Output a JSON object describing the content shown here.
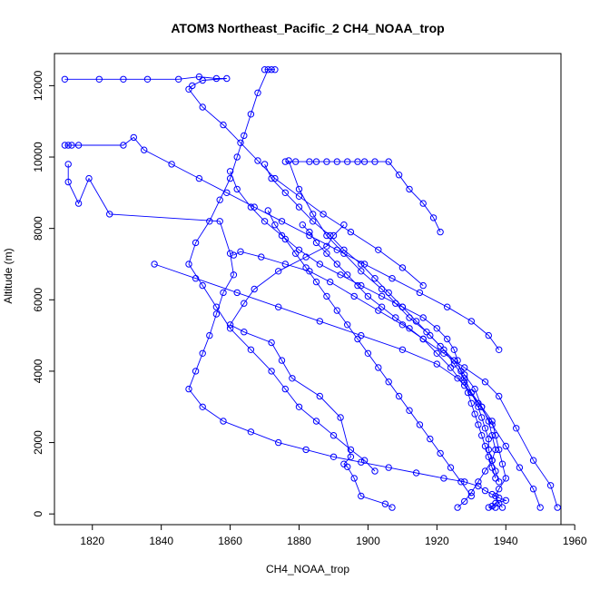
{
  "chart_data": {
    "type": "line",
    "title": "ATOM3 Northeast_Pacific_2 CH4_NOAA_trop",
    "xlabel": "CH4_NOAA_trop",
    "ylabel": "Altitude (m)",
    "xlim": [
      1809,
      1956
    ],
    "ylim": [
      -300,
      12900
    ],
    "xticks": [
      1820,
      1840,
      1860,
      1880,
      1900,
      1920,
      1940,
      1960
    ],
    "yticks": [
      0,
      2000,
      4000,
      6000,
      8000,
      10000,
      12000
    ],
    "grid": false,
    "legend": "none",
    "color": "#0000ff",
    "marker": "open-circle",
    "profiles": [
      {
        "x": [
          1907,
          1905,
          1898,
          1896,
          1894,
          1893,
          1895,
          1892,
          1886,
          1878,
          1875,
          1872,
          1864,
          1860,
          1864,
          1867,
          1874,
          1882,
          1888,
          1890,
          1893
        ],
        "y": [
          180,
          280,
          500,
          1000,
          1320,
          1400,
          1600,
          2700,
          3300,
          3800,
          4300,
          4800,
          5100,
          5300,
          5900,
          6300,
          6800,
          7200,
          7500,
          7800,
          8100
        ]
      },
      {
        "x": [
          1926,
          1928,
          1930,
          1932,
          1934,
          1936,
          1937,
          1936,
          1935,
          1933,
          1931,
          1928,
          1925,
          1921,
          1917,
          1912,
          1908,
          1904,
          1898,
          1893,
          1888,
          1884,
          1880,
          1877
        ],
        "y": [
          180,
          350,
          600,
          900,
          1200,
          1500,
          1800,
          2200,
          2600,
          3000,
          3500,
          3900,
          4300,
          4700,
          5100,
          5500,
          5900,
          6300,
          6800,
          7300,
          7800,
          8400,
          9100,
          9900
        ]
      },
      {
        "x": [
          1870,
          1872,
          1873,
          1871,
          1868,
          1866,
          1864,
          1862,
          1860,
          1857,
          1854,
          1850,
          1848,
          1852,
          1856,
          1860,
          1866,
          1872,
          1876,
          1880,
          1885,
          1890,
          1895,
          1899,
          1902
        ],
        "y": [
          12450,
          12450,
          12450,
          12450,
          11800,
          11200,
          10600,
          10000,
          9400,
          8800,
          8200,
          7600,
          7000,
          6400,
          5800,
          5200,
          4600,
          4000,
          3500,
          3000,
          2600,
          2200,
          1800,
          1500,
          1200
        ]
      },
      {
        "x": [
          1812,
          1822,
          1829,
          1836,
          1845,
          1851,
          1856,
          1859,
          1852,
          1849,
          1848,
          1852,
          1858,
          1863,
          1868,
          1873,
          1880,
          1887,
          1895,
          1903,
          1910,
          1916
        ],
        "y": [
          12180,
          12180,
          12180,
          12180,
          12180,
          12250,
          12200,
          12200,
          12150,
          12000,
          11900,
          11400,
          10900,
          10400,
          9900,
          9400,
          8900,
          8400,
          7900,
          7400,
          6900,
          6400
        ]
      },
      {
        "x": [
          1812,
          1813,
          1814,
          1816,
          1829,
          1832,
          1835,
          1843,
          1851,
          1859,
          1867,
          1875,
          1883,
          1891,
          1899,
          1907,
          1915,
          1923,
          1930,
          1935,
          1938
        ],
        "y": [
          10330,
          10330,
          10330,
          10330,
          10330,
          10550,
          10200,
          9800,
          9400,
          9000,
          8600,
          8200,
          7800,
          7400,
          7000,
          6600,
          6200,
          5800,
          5400,
          5000,
          4600
        ]
      },
      {
        "x": [
          1813,
          1813,
          1816,
          1819,
          1825,
          1857,
          1860,
          1861,
          1858,
          1856,
          1854,
          1852,
          1850,
          1848,
          1852,
          1858,
          1866,
          1874,
          1882,
          1890,
          1898,
          1906,
          1914,
          1922,
          1928,
          1932,
          1934,
          1936,
          1938,
          1940,
          1937,
          1936,
          1935,
          1937
        ],
        "y": [
          9800,
          9300,
          8700,
          9400,
          8400,
          8200,
          7300,
          6700,
          6200,
          5600,
          5000,
          4500,
          4000,
          3500,
          3000,
          2600,
          2300,
          2000,
          1800,
          1600,
          1450,
          1300,
          1150,
          1000,
          900,
          780,
          650,
          550,
          450,
          380,
          300,
          220,
          180,
          180
        ]
      },
      {
        "x": [
          1838,
          1850,
          1862,
          1874,
          1886,
          1898,
          1910,
          1920,
          1926,
          1930,
          1933,
          1936,
          1937,
          1938,
          1939,
          1940,
          1938,
          1937,
          1938,
          1939
        ],
        "y": [
          7000,
          6600,
          6200,
          5800,
          5400,
          5000,
          4600,
          4200,
          3800,
          3400,
          3000,
          2600,
          2200,
          1800,
          1400,
          1000,
          700,
          500,
          300,
          180
        ]
      },
      {
        "x": [
          1876,
          1879,
          1883,
          1885,
          1888,
          1891,
          1894,
          1897,
          1899,
          1902,
          1906,
          1909,
          1912,
          1916,
          1919,
          1921
        ],
        "y": [
          9870,
          9870,
          9870,
          9870,
          9870,
          9870,
          9870,
          9870,
          9870,
          9870,
          9870,
          9500,
          9100,
          8700,
          8300,
          7900
        ]
      },
      {
        "x": [
          1870,
          1872,
          1876,
          1880,
          1884,
          1889,
          1893,
          1898,
          1902,
          1906,
          1910,
          1914,
          1918,
          1922,
          1925,
          1928,
          1930,
          1932,
          1933,
          1934,
          1935,
          1935,
          1936,
          1937,
          1938
        ],
        "y": [
          9800,
          9400,
          9000,
          8600,
          8200,
          7800,
          7400,
          7000,
          6600,
          6200,
          5800,
          5400,
          5000,
          4600,
          4200,
          3800,
          3400,
          3000,
          2700,
          2400,
          2100,
          1800,
          1500,
          1200,
          900
        ]
      },
      {
        "x": [
          1860,
          1862,
          1866,
          1870,
          1875,
          1880,
          1886,
          1892,
          1898,
          1904,
          1910,
          1916,
          1920,
          1923,
          1925,
          1926,
          1927,
          1928,
          1929,
          1930,
          1931,
          1932,
          1933,
          1934,
          1935,
          1936,
          1937
        ],
        "y": [
          9600,
          9100,
          8600,
          8200,
          7800,
          7400,
          7000,
          6700,
          6400,
          6100,
          5800,
          5500,
          5200,
          4900,
          4600,
          4300,
          4000,
          3700,
          3400,
          3100,
          2800,
          2500,
          2200,
          1900,
          1600,
          1300,
          1000
        ]
      },
      {
        "x": [
          1861,
          1863,
          1869,
          1876,
          1883,
          1889,
          1896,
          1903,
          1910,
          1916,
          1922,
          1928,
          1934,
          1938,
          1943,
          1948,
          1953,
          1955
        ],
        "y": [
          7250,
          7350,
          7200,
          7000,
          6800,
          6500,
          6100,
          5700,
          5300,
          4900,
          4500,
          4100,
          3700,
          3300,
          2400,
          1500,
          800,
          180
        ]
      },
      {
        "x": [
          1881,
          1883,
          1885,
          1888,
          1891,
          1894,
          1897,
          1900,
          1904,
          1908,
          1912,
          1916,
          1920,
          1924,
          1928,
          1932,
          1936,
          1940,
          1944,
          1948,
          1950
        ],
        "y": [
          8100,
          7900,
          7600,
          7300,
          7000,
          6700,
          6400,
          6100,
          5800,
          5500,
          5200,
          4900,
          4500,
          4100,
          3600,
          3100,
          2500,
          1900,
          1300,
          700,
          180
        ]
      },
      {
        "x": [
          1871,
          1873,
          1876,
          1879,
          1882,
          1885,
          1888,
          1891,
          1894,
          1897,
          1900,
          1903,
          1906,
          1909,
          1912,
          1915,
          1918,
          1921,
          1924,
          1927,
          1930
        ],
        "y": [
          8500,
          8100,
          7700,
          7300,
          6900,
          6500,
          6100,
          5700,
          5300,
          4900,
          4500,
          4100,
          3700,
          3300,
          2900,
          2500,
          2100,
          1700,
          1300,
          900,
          500
        ]
      }
    ]
  }
}
